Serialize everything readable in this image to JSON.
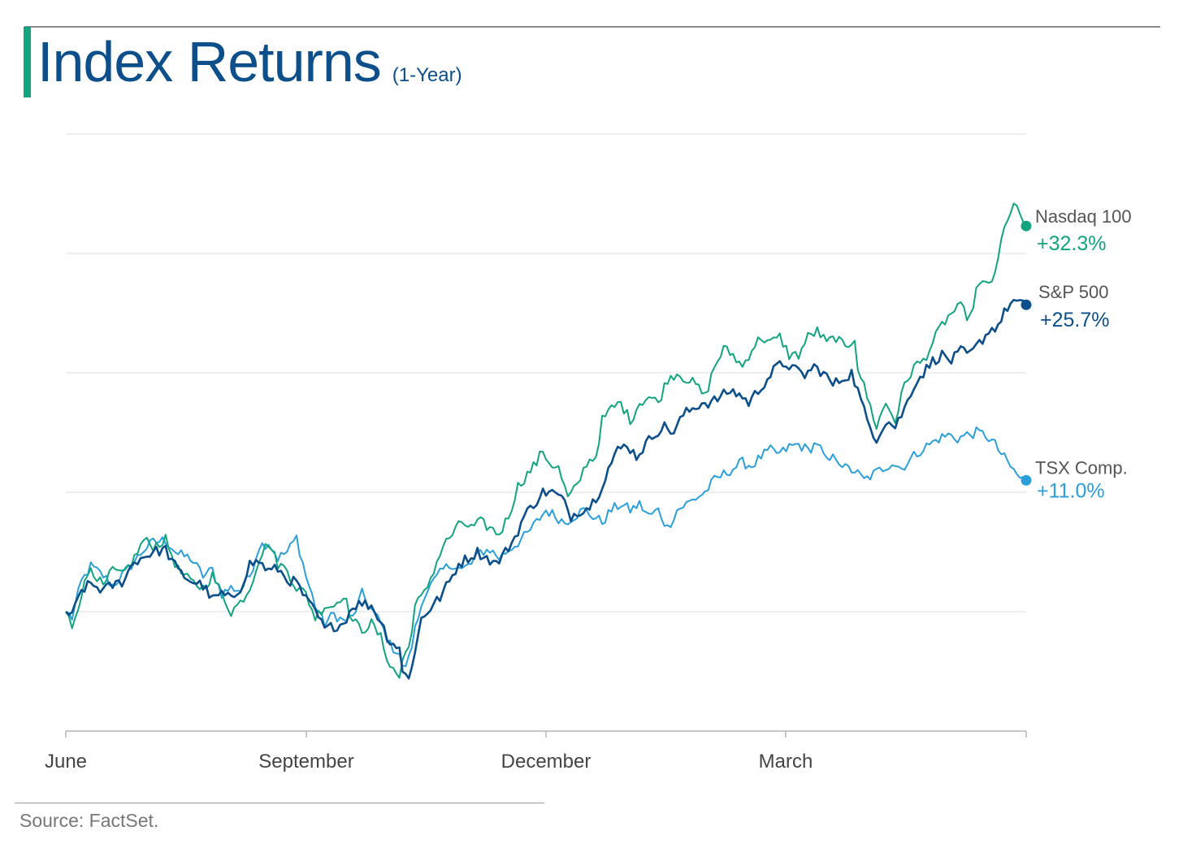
{
  "header": {
    "title": "Index Returns",
    "subtitle": "(1-Year)"
  },
  "colors": {
    "title": "#0c4f8a",
    "accent_bar": "#12a37f",
    "gridline": "#dcdcdc",
    "axis": "#b4b4b4",
    "tick_label": "#444444",
    "label_name": "#555555"
  },
  "chart_data": {
    "type": "line",
    "title": "Index Returns",
    "subtitle": "(1-Year)",
    "xlabel": "",
    "ylabel": "",
    "x_tick_labels": [
      "June",
      "September",
      "December",
      "March"
    ],
    "y_axis_labels_shown": false,
    "grid": "horizontal",
    "legend": "direct labels at line ends (right)",
    "ylim": [
      -10,
      40
    ],
    "y_gridlines": [
      -10,
      0,
      10,
      20,
      30,
      40
    ],
    "series": [
      {
        "name": "Nasdaq 100",
        "end_label": "+32.3%",
        "color": "#12a37f",
        "end_value": 32.3,
        "keypoints": [
          [
            0,
            0.0
          ],
          [
            2,
            -1.2
          ],
          [
            5,
            1.5
          ],
          [
            8,
            3.8
          ],
          [
            12,
            2.0
          ],
          [
            15,
            3.5
          ],
          [
            18,
            3.0
          ],
          [
            22,
            4.5
          ],
          [
            25,
            6.0
          ],
          [
            28,
            5.5
          ],
          [
            32,
            6.0
          ],
          [
            36,
            3.5
          ],
          [
            40,
            2.5
          ],
          [
            44,
            2.0
          ],
          [
            47,
            3.0
          ],
          [
            50,
            1.5
          ],
          [
            53,
            0.0
          ],
          [
            56,
            0.8
          ],
          [
            59,
            2.0
          ],
          [
            62,
            4.5
          ],
          [
            65,
            5.8
          ],
          [
            68,
            4.0
          ],
          [
            71,
            3.5
          ],
          [
            74,
            2.0
          ],
          [
            77,
            1.5
          ],
          [
            80,
            -0.5
          ],
          [
            83,
            0.5
          ],
          [
            86,
            0.5
          ],
          [
            89,
            1.5
          ],
          [
            92,
            -0.8
          ],
          [
            95,
            -1.5
          ],
          [
            98,
            -1.0
          ],
          [
            101,
            -2.2
          ],
          [
            104,
            -4.5
          ],
          [
            107,
            -5.5
          ],
          [
            108,
            -4.0
          ],
          [
            110,
            -3.0
          ],
          [
            112,
            0.5
          ],
          [
            115,
            1.5
          ],
          [
            118,
            3.5
          ],
          [
            121,
            5.5
          ],
          [
            124,
            6.5
          ],
          [
            127,
            7.5
          ],
          [
            130,
            7.0
          ],
          [
            133,
            7.5
          ],
          [
            136,
            7.0
          ],
          [
            139,
            6.5
          ],
          [
            142,
            8.0
          ],
          [
            145,
            10.5
          ],
          [
            148,
            11.5
          ],
          [
            151,
            12.5
          ],
          [
            153,
            13.5
          ],
          [
            155,
            12.5
          ],
          [
            158,
            12.0
          ],
          [
            161,
            9.5
          ],
          [
            164,
            10.5
          ],
          [
            167,
            12.5
          ],
          [
            170,
            13.0
          ],
          [
            172,
            16.0
          ],
          [
            175,
            17.0
          ],
          [
            178,
            17.5
          ],
          [
            181,
            16.0
          ],
          [
            184,
            17.5
          ],
          [
            187,
            18.0
          ],
          [
            190,
            17.5
          ],
          [
            193,
            19.5
          ],
          [
            196,
            20.0
          ],
          [
            199,
            19.5
          ],
          [
            202,
            19.0
          ],
          [
            205,
            18.0
          ],
          [
            208,
            20.5
          ],
          [
            211,
            22.0
          ],
          [
            214,
            21.5
          ],
          [
            217,
            20.5
          ],
          [
            220,
            22.0
          ],
          [
            223,
            23.0
          ],
          [
            226,
            22.5
          ],
          [
            229,
            23.0
          ],
          [
            232,
            21.5
          ],
          [
            235,
            21.5
          ],
          [
            238,
            23.0
          ],
          [
            241,
            23.5
          ],
          [
            244,
            22.5
          ],
          [
            247,
            23.0
          ],
          [
            250,
            22.0
          ],
          [
            253,
            23.0
          ],
          [
            254,
            20.5
          ],
          [
            257,
            18.0
          ],
          [
            260,
            15.5
          ],
          [
            263,
            17.5
          ],
          [
            266,
            16.0
          ],
          [
            269,
            19.0
          ],
          [
            272,
            20.5
          ],
          [
            275,
            21.0
          ],
          [
            278,
            22.5
          ],
          [
            281,
            24.0
          ],
          [
            284,
            25.0
          ],
          [
            287,
            25.5
          ],
          [
            290,
            24.5
          ],
          [
            292,
            27.0
          ],
          [
            295,
            27.5
          ],
          [
            298,
            28.0
          ],
          [
            300,
            31.0
          ],
          [
            302,
            33.0
          ],
          [
            304,
            34.0
          ],
          [
            306,
            33.2
          ],
          [
            308,
            32.3
          ]
        ]
      },
      {
        "name": "S&P 500",
        "end_label": "+25.7%",
        "color": "#0c4f8a",
        "end_value": 25.7,
        "keypoints": [
          [
            0,
            0.0
          ],
          [
            2,
            -0.4
          ],
          [
            5,
            1.8
          ],
          [
            8,
            2.3
          ],
          [
            12,
            1.8
          ],
          [
            15,
            2.2
          ],
          [
            18,
            2.5
          ],
          [
            22,
            4.2
          ],
          [
            25,
            4.6
          ],
          [
            28,
            5.0
          ],
          [
            32,
            5.2
          ],
          [
            36,
            3.4
          ],
          [
            40,
            2.6
          ],
          [
            44,
            2.2
          ],
          [
            47,
            1.0
          ],
          [
            50,
            1.5
          ],
          [
            53,
            1.0
          ],
          [
            56,
            2.0
          ],
          [
            59,
            4.0
          ],
          [
            62,
            4.2
          ],
          [
            65,
            3.4
          ],
          [
            68,
            3.6
          ],
          [
            71,
            2.7
          ],
          [
            74,
            2.4
          ],
          [
            77,
            1.0
          ],
          [
            80,
            0.0
          ],
          [
            83,
            -1.5
          ],
          [
            86,
            -1.2
          ],
          [
            89,
            -1.0
          ],
          [
            92,
            0.5
          ],
          [
            95,
            0.7
          ],
          [
            98,
            0.5
          ],
          [
            101,
            -0.8
          ],
          [
            104,
            -2.5
          ],
          [
            107,
            -3.0
          ],
          [
            108,
            -5.2
          ],
          [
            110,
            -5.3
          ],
          [
            112,
            -3.5
          ],
          [
            114,
            -0.5
          ],
          [
            117,
            0.3
          ],
          [
            120,
            1.2
          ],
          [
            123,
            2.5
          ],
          [
            126,
            4.0
          ],
          [
            129,
            4.5
          ],
          [
            132,
            5.0
          ],
          [
            135,
            4.5
          ],
          [
            138,
            4.0
          ],
          [
            141,
            5.0
          ],
          [
            144,
            6.2
          ],
          [
            147,
            8.0
          ],
          [
            150,
            9.0
          ],
          [
            153,
            10.0
          ],
          [
            156,
            10.0
          ],
          [
            159,
            9.5
          ],
          [
            162,
            8.0
          ],
          [
            165,
            8.5
          ],
          [
            168,
            8.8
          ],
          [
            171,
            10.0
          ],
          [
            174,
            12.0
          ],
          [
            177,
            13.5
          ],
          [
            180,
            14.0
          ],
          [
            183,
            13.0
          ],
          [
            186,
            14.0
          ],
          [
            189,
            15.0
          ],
          [
            192,
            15.5
          ],
          [
            195,
            15.0
          ],
          [
            198,
            16.5
          ],
          [
            201,
            17.0
          ],
          [
            204,
            17.5
          ],
          [
            207,
            17.5
          ],
          [
            210,
            18.0
          ],
          [
            213,
            18.5
          ],
          [
            216,
            18.2
          ],
          [
            219,
            17.5
          ],
          [
            222,
            18.5
          ],
          [
            225,
            19.5
          ],
          [
            228,
            20.5
          ],
          [
            231,
            20.8
          ],
          [
            234,
            20.2
          ],
          [
            237,
            19.8
          ],
          [
            240,
            20.5
          ],
          [
            243,
            20.0
          ],
          [
            246,
            19.0
          ],
          [
            249,
            19.5
          ],
          [
            252,
            20.0
          ],
          [
            254,
            18.5
          ],
          [
            257,
            16.0
          ],
          [
            260,
            14.5
          ],
          [
            263,
            16.0
          ],
          [
            266,
            15.5
          ],
          [
            269,
            17.0
          ],
          [
            272,
            19.0
          ],
          [
            275,
            20.0
          ],
          [
            278,
            21.0
          ],
          [
            281,
            21.5
          ],
          [
            284,
            21.0
          ],
          [
            287,
            21.8
          ],
          [
            290,
            21.5
          ],
          [
            293,
            22.5
          ],
          [
            296,
            23.5
          ],
          [
            299,
            24.0
          ],
          [
            302,
            25.5
          ],
          [
            304,
            26.0
          ],
          [
            306,
            25.7
          ],
          [
            308,
            25.7
          ]
        ]
      },
      {
        "name": "TSX Comp.",
        "end_label": "+11.0%",
        "color": "#2b9fd9",
        "end_value": 11.0,
        "keypoints": [
          [
            0,
            0.0
          ],
          [
            2,
            -0.5
          ],
          [
            5,
            2.5
          ],
          [
            8,
            3.8
          ],
          [
            12,
            3.0
          ],
          [
            15,
            2.2
          ],
          [
            18,
            3.0
          ],
          [
            22,
            4.2
          ],
          [
            25,
            5.2
          ],
          [
            28,
            5.8
          ],
          [
            32,
            6.0
          ],
          [
            36,
            4.8
          ],
          [
            40,
            4.5
          ],
          [
            44,
            3.0
          ],
          [
            47,
            3.5
          ],
          [
            50,
            1.5
          ],
          [
            53,
            2.0
          ],
          [
            56,
            1.8
          ],
          [
            59,
            3.0
          ],
          [
            62,
            5.5
          ],
          [
            65,
            5.8
          ],
          [
            68,
            4.5
          ],
          [
            71,
            5.0
          ],
          [
            74,
            6.2
          ],
          [
            77,
            3.0
          ],
          [
            80,
            0.5
          ],
          [
            83,
            -1.0
          ],
          [
            86,
            -0.2
          ],
          [
            89,
            -0.8
          ],
          [
            92,
            -0.5
          ],
          [
            95,
            1.5
          ],
          [
            98,
            0.2
          ],
          [
            101,
            -1.0
          ],
          [
            104,
            -2.8
          ],
          [
            107,
            -3.5
          ],
          [
            108,
            -4.8
          ],
          [
            110,
            -4.0
          ],
          [
            112,
            -1.5
          ],
          [
            115,
            1.5
          ],
          [
            118,
            2.5
          ],
          [
            121,
            3.5
          ],
          [
            124,
            4.0
          ],
          [
            127,
            3.5
          ],
          [
            130,
            4.0
          ],
          [
            133,
            5.0
          ],
          [
            136,
            5.2
          ],
          [
            139,
            4.5
          ],
          [
            142,
            5.2
          ],
          [
            145,
            5.8
          ],
          [
            148,
            6.5
          ],
          [
            151,
            7.5
          ],
          [
            154,
            8.5
          ],
          [
            157,
            8.0
          ],
          [
            160,
            7.5
          ],
          [
            163,
            8.0
          ],
          [
            166,
            8.5
          ],
          [
            169,
            8.0
          ],
          [
            172,
            7.5
          ],
          [
            175,
            8.5
          ],
          [
            178,
            9.0
          ],
          [
            181,
            8.5
          ],
          [
            184,
            9.0
          ],
          [
            187,
            8.0
          ],
          [
            190,
            8.5
          ],
          [
            193,
            7.0
          ],
          [
            196,
            8.5
          ],
          [
            199,
            9.0
          ],
          [
            202,
            9.5
          ],
          [
            205,
            10.0
          ],
          [
            208,
            11.0
          ],
          [
            211,
            11.5
          ],
          [
            214,
            12.0
          ],
          [
            217,
            12.5
          ],
          [
            220,
            12.2
          ],
          [
            223,
            13.0
          ],
          [
            226,
            13.5
          ],
          [
            229,
            13.2
          ],
          [
            232,
            13.8
          ],
          [
            235,
            14.0
          ],
          [
            238,
            13.5
          ],
          [
            241,
            14.2
          ],
          [
            244,
            12.5
          ],
          [
            247,
            13.0
          ],
          [
            250,
            12.0
          ],
          [
            253,
            11.8
          ],
          [
            256,
            11.0
          ],
          [
            259,
            11.5
          ],
          [
            262,
            12.0
          ],
          [
            265,
            12.5
          ],
          [
            268,
            12.0
          ],
          [
            271,
            12.8
          ],
          [
            274,
            13.5
          ],
          [
            277,
            14.0
          ],
          [
            280,
            14.5
          ],
          [
            283,
            14.8
          ],
          [
            286,
            14.5
          ],
          [
            289,
            14.8
          ],
          [
            292,
            15.0
          ],
          [
            295,
            14.8
          ],
          [
            298,
            14.0
          ],
          [
            300,
            13.2
          ],
          [
            302,
            12.5
          ],
          [
            304,
            11.8
          ],
          [
            306,
            11.2
          ],
          [
            308,
            11.0
          ]
        ]
      }
    ]
  },
  "footer": {
    "source": "Source: FactSet."
  }
}
